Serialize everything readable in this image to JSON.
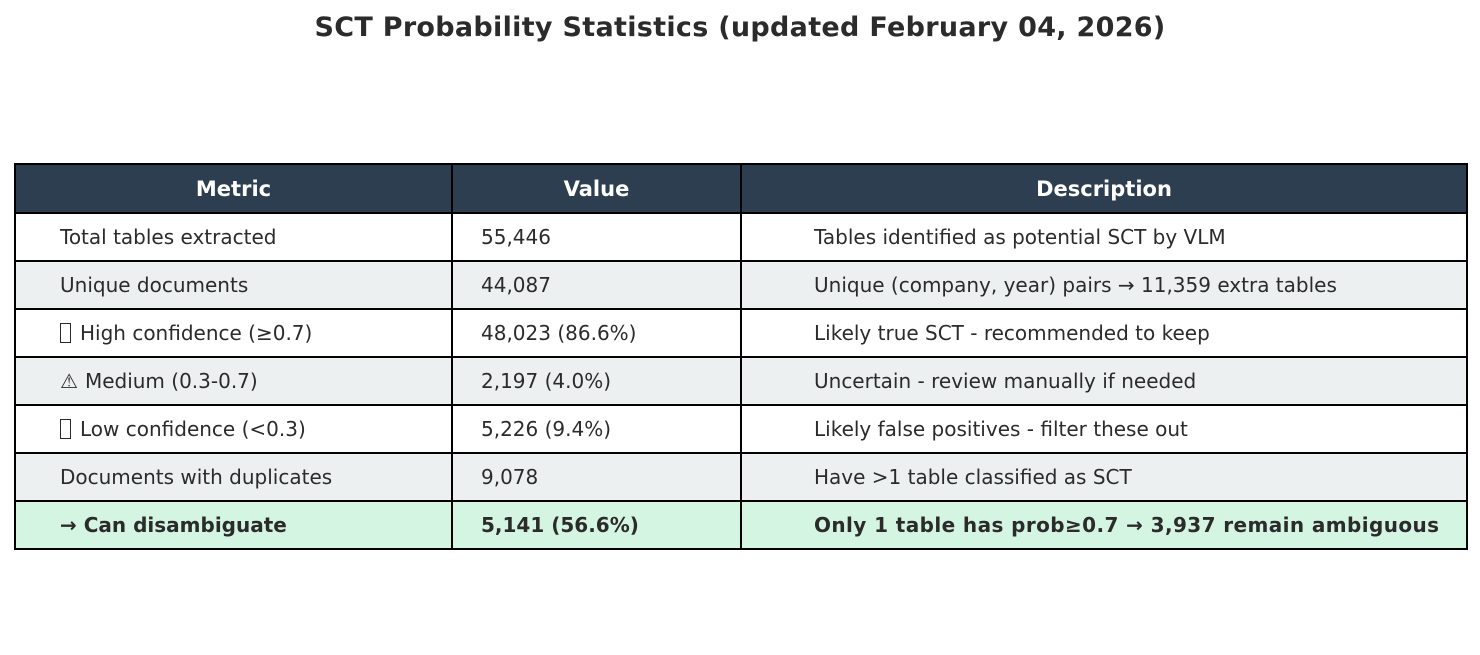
{
  "chart_data": {
    "type": "table",
    "title": "SCT Probability Statistics (updated February 04, 2026)",
    "columns": [
      "Metric",
      "Value",
      "Description"
    ],
    "rows": [
      {
        "metric": "Total tables extracted",
        "value": "55,446",
        "description": "Tables identified as potential SCT by VLM"
      },
      {
        "metric": "Unique documents",
        "value": "44,087",
        "description": "Unique (company, year) pairs → 11,359 extra tables"
      },
      {
        "icon": "missing-glyph-box",
        "metric": "High confidence (≥0.7)",
        "value": "48,023 (86.6%)",
        "description": "Likely true SCT - recommended to keep"
      },
      {
        "icon": "warning-triangle",
        "icon_glyph": "⚠",
        "metric": "Medium (0.3-0.7)",
        "value": "2,197 (4.0%)",
        "description": "Uncertain - review manually if needed"
      },
      {
        "icon": "missing-glyph-box",
        "metric": "Low confidence (<0.3)",
        "value": "5,226 (9.4%)",
        "description": "Likely false positives - filter these out"
      },
      {
        "metric": "Documents with duplicates",
        "value": "9,078",
        "description": "Have >1 table classified as SCT"
      },
      {
        "metric": "→ Can disambiguate",
        "value": "5,141 (56.6%)",
        "description": "Only 1 table has prob≥0.7 → 3,937 remain ambiguous"
      }
    ],
    "layout": {
      "header_position": "top",
      "grid": "on",
      "highlight_row_index": 6
    },
    "styles": {
      "header_bg": "#2c3e50",
      "header_text": "#ffffff",
      "row_bg": "#ffffff",
      "row_alt_bg": "#ecf0f1",
      "highlight_row_bg": "#d5f5e3",
      "border_color": "#000000",
      "text_color": "#2b2b2b"
    }
  }
}
